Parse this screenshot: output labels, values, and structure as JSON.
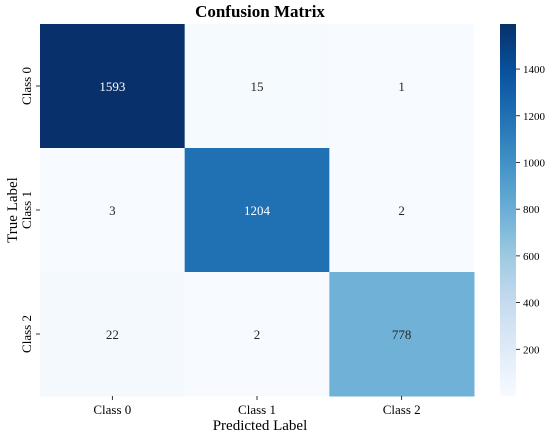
{
  "chart_data": {
    "type": "heatmap",
    "title": "Confusion Matrix",
    "xlabel": "Predicted Label",
    "ylabel": "True Label",
    "x_categories": [
      "Class 0",
      "Class 1",
      "Class 2"
    ],
    "y_categories": [
      "Class 0",
      "Class 1",
      "Class 2"
    ],
    "values": [
      [
        1593,
        15,
        1
      ],
      [
        3,
        1204,
        2
      ],
      [
        22,
        2,
        778
      ]
    ],
    "colormap": "Blues",
    "color_low": "#f7fbff",
    "color_high": "#08306b",
    "colorbar": {
      "range": [
        0,
        1593
      ],
      "ticks": [
        200,
        400,
        600,
        800,
        1000,
        1200,
        1400
      ]
    }
  }
}
